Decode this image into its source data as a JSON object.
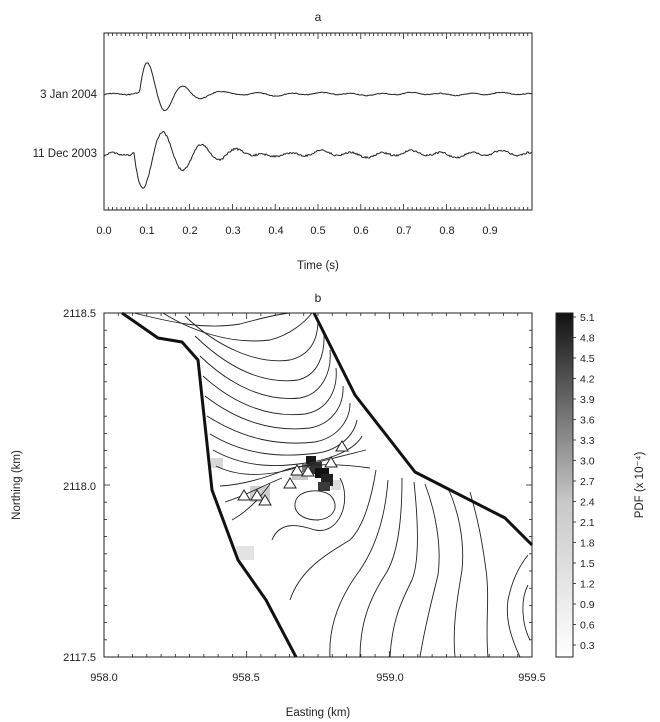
{
  "panel_a": {
    "label": "a",
    "xlabel": "Time (s)",
    "xticks": [
      "0.0",
      "0.1",
      "0.2",
      "0.3",
      "0.4",
      "0.5",
      "0.6",
      "0.7",
      "0.8",
      "0.9"
    ],
    "traces": [
      {
        "name": "3 Jan 2004"
      },
      {
        "name": "11 Dec 2003"
      }
    ]
  },
  "panel_b": {
    "label": "b",
    "xlabel": "Easting (km)",
    "ylabel": "Northing (km)",
    "xticks": [
      "958.0",
      "958.5",
      "959.0",
      "959.5"
    ],
    "yticks": [
      "2118.5",
      "2118.0",
      "2117.5"
    ],
    "colorbar": {
      "label": "PDF (x 10⁻⁴)",
      "ticks": [
        "5.1",
        "4.8",
        "4.5",
        "4.2",
        "3.9",
        "3.6",
        "3.3",
        "3.0",
        "2.7",
        "2.4",
        "2.1",
        "1.8",
        "1.5",
        "1.2",
        "0.9",
        "0.6",
        "0.3"
      ]
    }
  },
  "chart_data": [
    {
      "type": "line",
      "title": "a",
      "xlabel": "Time (s)",
      "ylabel": "",
      "xlim": [
        0.0,
        1.0
      ],
      "series": [
        {
          "name": "3 Jan 2004",
          "onset_s": 0.083,
          "peak_time_s": 0.09
        },
        {
          "name": "11 Dec 2003",
          "onset_s": 0.07,
          "peak_time_s": 0.075
        }
      ]
    },
    {
      "type": "heatmap",
      "title": "b",
      "xlabel": "Easting (km)",
      "ylabel": "Northing (km)",
      "xlim": [
        958.0,
        959.5
      ],
      "ylim": [
        2117.5,
        2118.5
      ],
      "colorbar_range": [
        0.3,
        5.1
      ],
      "colorbar_label": "PDF (x 10⁻⁴)",
      "stations": [
        {
          "x": 958.49,
          "y": 2117.96
        },
        {
          "x": 958.52,
          "y": 2117.95
        },
        {
          "x": 958.55,
          "y": 2117.94
        },
        {
          "x": 958.65,
          "y": 2118.0
        },
        {
          "x": 958.69,
          "y": 2118.03
        },
        {
          "x": 958.72,
          "y": 2118.06
        },
        {
          "x": 958.78,
          "y": 2118.07
        },
        {
          "x": 958.83,
          "y": 2118.11
        }
      ],
      "pdf_peak": {
        "x": 958.75,
        "y": 2118.02
      }
    }
  ]
}
